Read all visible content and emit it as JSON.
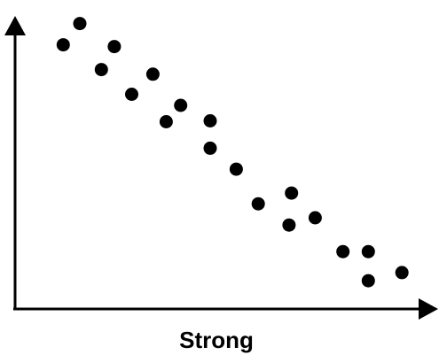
{
  "chart_data": {
    "type": "scatter",
    "title": "",
    "xlabel": "Strong",
    "ylabel": "",
    "grid": false,
    "legend": "none",
    "x_ticks_shown": false,
    "y_ticks_shown": false,
    "xlim": [
      0,
      100
    ],
    "ylim": [
      0,
      100
    ],
    "colors": {
      "point": "#000000",
      "axis": "#000000"
    },
    "series": [
      {
        "points": [
          {
            "x": 11.6,
            "y": 90.7
          },
          {
            "x": 15.6,
            "y": 98.0
          },
          {
            "x": 20.8,
            "y": 82.2
          },
          {
            "x": 23.9,
            "y": 90.1
          },
          {
            "x": 28.1,
            "y": 73.7
          },
          {
            "x": 33.2,
            "y": 80.6
          },
          {
            "x": 36.4,
            "y": 64.3
          },
          {
            "x": 39.9,
            "y": 69.9
          },
          {
            "x": 47.0,
            "y": 64.6
          },
          {
            "x": 47.0,
            "y": 55.2
          },
          {
            "x": 53.3,
            "y": 48.0
          },
          {
            "x": 58.6,
            "y": 36.1
          },
          {
            "x": 66.0,
            "y": 28.8
          },
          {
            "x": 66.6,
            "y": 39.8
          },
          {
            "x": 72.3,
            "y": 31.3
          },
          {
            "x": 79.0,
            "y": 19.7
          },
          {
            "x": 85.1,
            "y": 19.7
          },
          {
            "x": 85.1,
            "y": 9.7
          },
          {
            "x": 93.2,
            "y": 12.5
          }
        ]
      }
    ]
  }
}
